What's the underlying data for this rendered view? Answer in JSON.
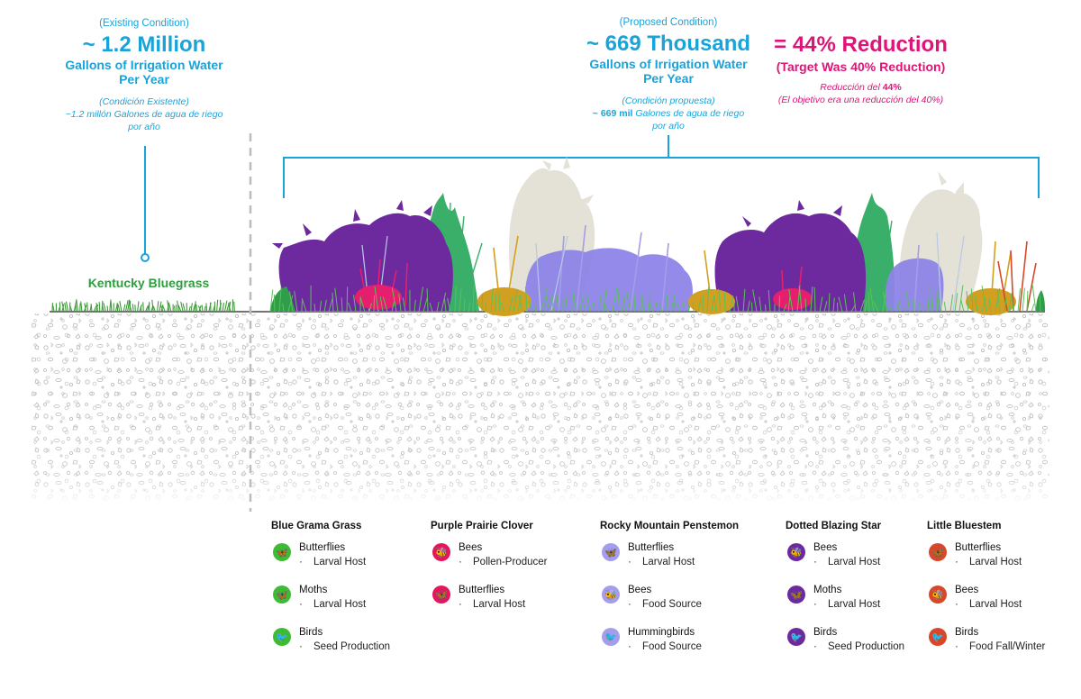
{
  "existing": {
    "label": "(Existing Condition)",
    "amount": "~ 1.2 Million",
    "unit_line1": "Gallons of Irrigation Water",
    "unit_line2": "Per Year",
    "es_line1": "(Condición Existente)",
    "es_line2": "~1.2 millón Galones de agua de riego",
    "es_line3": "por año",
    "turf_label": "Kentucky Bluegrass"
  },
  "proposed": {
    "label": "(Proposed Condition)",
    "amount": "~ 669 Thousand",
    "unit_line1": "Gallons of Irrigation Water",
    "unit_line2": "Per Year",
    "es_line1": "(Condición propuesta)",
    "es_line2_bold": "~ 669 mil",
    "es_line2_rest": " Galones de agua de riego",
    "es_line3": "por año"
  },
  "reduction": {
    "headline": "= 44% Reduction",
    "target": "(Target Was 40% Reduction)",
    "es_line1_prefix": "Reducción del ",
    "es_line1_bold": "44%",
    "es_line2": "(El objetivo era una reducción del 40%)"
  },
  "colors": {
    "cyan": "#1aa3d9",
    "magenta": "#e01478",
    "green": "#2e9e3e",
    "purple": "#6c2a9e",
    "lavender": "#8d84e8",
    "pink": "#e61e6e",
    "orange_red": "#d8472a",
    "gold": "#d2a021"
  },
  "species": [
    {
      "name": "Blue Grama Grass",
      "color": "#3dbb34",
      "rows": [
        {
          "icon": "butterfly-icon",
          "glyph": "🦋",
          "name": "Butterflies",
          "desc": "Larval Host"
        },
        {
          "icon": "moth-icon",
          "glyph": "🦋",
          "name": "Moths",
          "desc": "Larval Host"
        },
        {
          "icon": "bird-icon",
          "glyph": "🐦",
          "name": "Birds",
          "desc": "Seed Production"
        }
      ]
    },
    {
      "name": "Purple Prairie Clover",
      "color": "#e6165e",
      "rows": [
        {
          "icon": "bee-icon",
          "glyph": "🐝",
          "name": "Bees",
          "desc": "Pollen-Producer"
        },
        {
          "icon": "butterfly-icon",
          "glyph": "🦋",
          "name": "Butterflies",
          "desc": "Larval Host"
        }
      ]
    },
    {
      "name": "Rocky Mountain Penstemon",
      "color": "#a49cec",
      "rows": [
        {
          "icon": "butterfly-icon",
          "glyph": "🦋",
          "name": "Butterflies",
          "desc": "Larval Host"
        },
        {
          "icon": "bee-icon",
          "glyph": "🐝",
          "name": "Bees",
          "desc": "Food Source"
        },
        {
          "icon": "hummingbird-icon",
          "glyph": "🐦",
          "name": "Hummingbirds",
          "desc": "Food Source"
        }
      ]
    },
    {
      "name": "Dotted Blazing Star",
      "color": "#6c2a9e",
      "rows": [
        {
          "icon": "bee-icon",
          "glyph": "🐝",
          "name": "Bees",
          "desc": "Larval Host"
        },
        {
          "icon": "moth-icon",
          "glyph": "🦋",
          "name": "Moths",
          "desc": "Larval Host"
        },
        {
          "icon": "bird-icon",
          "glyph": "🐦",
          "name": "Birds",
          "desc": "Seed Production"
        }
      ]
    },
    {
      "name": "Little Bluestem",
      "color": "#d8472a",
      "rows": [
        {
          "icon": "butterfly-icon",
          "glyph": "🦋",
          "name": "Butterflies",
          "desc": "Larval Host"
        },
        {
          "icon": "bee-icon",
          "glyph": "🐝",
          "name": "Bees",
          "desc": "Larval Host"
        },
        {
          "icon": "bird-icon",
          "glyph": "🐦",
          "name": "Birds",
          "desc": "Food Fall/Winter"
        }
      ]
    }
  ]
}
